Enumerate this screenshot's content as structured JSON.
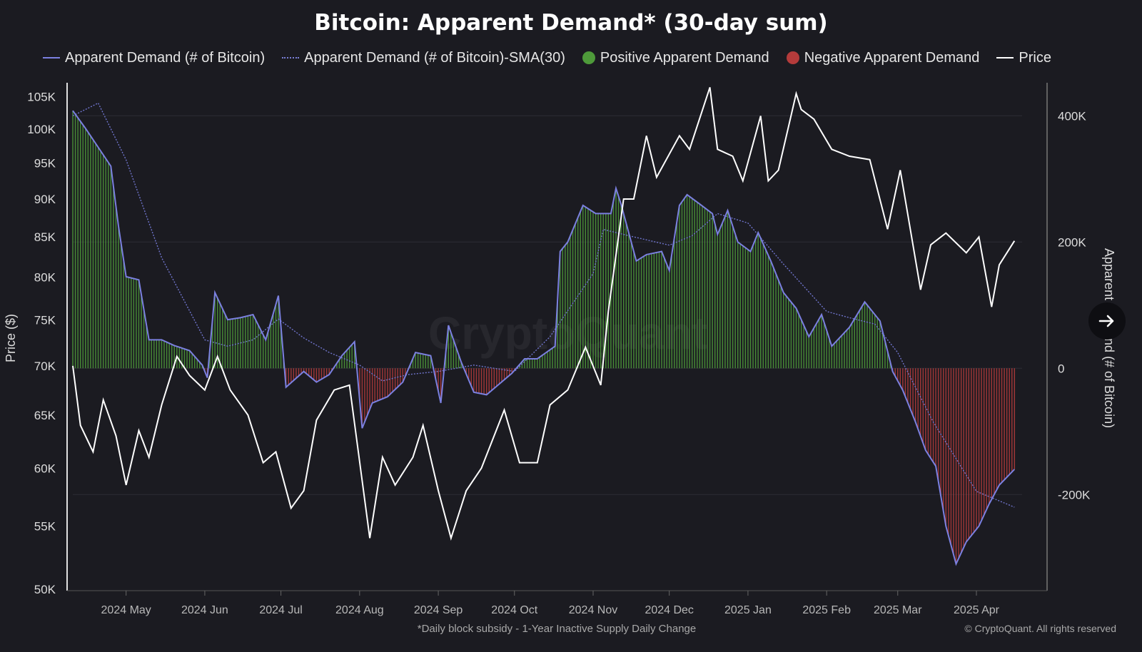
{
  "chart_data": {
    "type": "line",
    "title": "Bitcoin: Apparent Demand* (30-day sum)",
    "footnote": "*Daily block subsidy - 1-Year Inactive Supply Daily Change",
    "copyright": "© CryptoQuant. All rights reserved",
    "watermark": "CryptoQuant",
    "left_axis": {
      "label": "Price ($)",
      "scale": "log",
      "ticks": [
        "105K",
        "100K",
        "95K",
        "90K",
        "85K",
        "80K",
        "75K",
        "70K",
        "65K",
        "60K",
        "55K",
        "50K"
      ],
      "tick_values": [
        105000,
        100000,
        95000,
        90000,
        85000,
        80000,
        75000,
        70000,
        65000,
        60000,
        55000,
        50000
      ],
      "range": [
        50000,
        107000
      ]
    },
    "right_axis": {
      "label": "Apparent Demand (# of Bitcoin)",
      "ticks": [
        "400K",
        "200K",
        "0",
        "-200K"
      ],
      "tick_values": [
        400000,
        200000,
        0,
        -200000
      ],
      "range": [
        -350000,
        450000
      ]
    },
    "x_axis": {
      "ticks": [
        "2024 May",
        "2024 Jun",
        "2024 Jul",
        "2024 Aug",
        "2024 Sep",
        "2024 Oct",
        "2024 Nov",
        "2024 Dec",
        "2025 Jan",
        "2025 Feb",
        "2025 Mar",
        "2025 Apr"
      ],
      "tick_dates": [
        "2024-05-01",
        "2024-06-01",
        "2024-07-01",
        "2024-08-01",
        "2024-09-01",
        "2024-10-01",
        "2024-11-01",
        "2024-12-01",
        "2025-01-01",
        "2025-02-01",
        "2025-03-01",
        "2025-04-01"
      ],
      "start": "2024-04-10",
      "end": "2025-04-19"
    },
    "legend": [
      {
        "label": "Apparent Demand (# of Bitcoin)",
        "kind": "line",
        "color": "#7b80e0"
      },
      {
        "label": "Apparent Demand (# of Bitcoin)-SMA(30)",
        "kind": "dashed",
        "color": "#7a7fd6"
      },
      {
        "label": "Positive Apparent Demand",
        "kind": "dot",
        "color": "#4e9a3a"
      },
      {
        "label": "Negative Apparent Demand",
        "kind": "dot",
        "color": "#b43b3b"
      },
      {
        "label": "Price",
        "kind": "line",
        "color": "#ffffff"
      }
    ],
    "series": [
      {
        "name": "Apparent Demand (# of Bitcoin)",
        "axis": "right",
        "points": [
          [
            "2024-04-10",
            408000
          ],
          [
            "2024-04-15",
            380000
          ],
          [
            "2024-04-20",
            350000
          ],
          [
            "2024-04-25",
            320000
          ],
          [
            "2024-04-28",
            225000
          ],
          [
            "2024-05-01",
            145000
          ],
          [
            "2024-05-06",
            140000
          ],
          [
            "2024-05-10",
            45000
          ],
          [
            "2024-05-15",
            45000
          ],
          [
            "2024-05-20",
            36000
          ],
          [
            "2024-05-26",
            28000
          ],
          [
            "2024-05-31",
            5000
          ],
          [
            "2024-06-02",
            -15000
          ],
          [
            "2024-06-05",
            120000
          ],
          [
            "2024-06-10",
            77000
          ],
          [
            "2024-06-15",
            80000
          ],
          [
            "2024-06-20",
            85000
          ],
          [
            "2024-06-25",
            45000
          ],
          [
            "2024-06-30",
            115000
          ],
          [
            "2024-07-03",
            -30000
          ],
          [
            "2024-07-10",
            -5000
          ],
          [
            "2024-07-15",
            -22000
          ],
          [
            "2024-07-20",
            -10000
          ],
          [
            "2024-07-25",
            20000
          ],
          [
            "2024-07-30",
            42000
          ],
          [
            "2024-08-02",
            -95000
          ],
          [
            "2024-08-06",
            -55000
          ],
          [
            "2024-08-12",
            -45000
          ],
          [
            "2024-08-18",
            -22000
          ],
          [
            "2024-08-23",
            25000
          ],
          [
            "2024-08-29",
            20000
          ],
          [
            "2024-09-02",
            -55000
          ],
          [
            "2024-09-05",
            68000
          ],
          [
            "2024-09-10",
            10000
          ],
          [
            "2024-09-15",
            -38000
          ],
          [
            "2024-09-20",
            -42000
          ],
          [
            "2024-09-25",
            -25000
          ],
          [
            "2024-09-30",
            -8000
          ],
          [
            "2024-10-05",
            15000
          ],
          [
            "2024-10-10",
            15000
          ],
          [
            "2024-10-17",
            35000
          ],
          [
            "2024-10-19",
            185000
          ],
          [
            "2024-10-22",
            200000
          ],
          [
            "2024-10-28",
            258000
          ],
          [
            "2024-11-02",
            245000
          ],
          [
            "2024-11-08",
            245000
          ],
          [
            "2024-11-10",
            285000
          ],
          [
            "2024-11-12",
            260000
          ],
          [
            "2024-11-18",
            170000
          ],
          [
            "2024-11-22",
            180000
          ],
          [
            "2024-11-28",
            185000
          ],
          [
            "2024-12-01",
            155000
          ],
          [
            "2024-12-05",
            258000
          ],
          [
            "2024-12-08",
            275000
          ],
          [
            "2024-12-13",
            260000
          ],
          [
            "2024-12-18",
            245000
          ],
          [
            "2024-12-20",
            212000
          ],
          [
            "2024-12-24",
            250000
          ],
          [
            "2024-12-28",
            200000
          ],
          [
            "2025-01-02",
            185000
          ],
          [
            "2025-01-05",
            215000
          ],
          [
            "2025-01-10",
            170000
          ],
          [
            "2025-01-15",
            120000
          ],
          [
            "2025-01-20",
            95000
          ],
          [
            "2025-01-25",
            50000
          ],
          [
            "2025-01-30",
            85000
          ],
          [
            "2025-02-03",
            35000
          ],
          [
            "2025-02-10",
            65000
          ],
          [
            "2025-02-16",
            105000
          ],
          [
            "2025-02-22",
            75000
          ],
          [
            "2025-02-27",
            -5000
          ],
          [
            "2025-03-03",
            -35000
          ],
          [
            "2025-03-08",
            -85000
          ],
          [
            "2025-03-12",
            -130000
          ],
          [
            "2025-03-16",
            -155000
          ],
          [
            "2025-03-20",
            -250000
          ],
          [
            "2025-03-24",
            -310000
          ],
          [
            "2025-03-28",
            -275000
          ],
          [
            "2025-04-02",
            -250000
          ],
          [
            "2025-04-06",
            -215000
          ],
          [
            "2025-04-10",
            -185000
          ],
          [
            "2025-04-16",
            -160000
          ]
        ]
      },
      {
        "name": "Apparent Demand (# of Bitcoin)-SMA(30)",
        "axis": "right",
        "points": [
          [
            "2024-04-10",
            400000
          ],
          [
            "2024-04-20",
            420000
          ],
          [
            "2024-05-01",
            330000
          ],
          [
            "2024-05-15",
            175000
          ],
          [
            "2024-06-01",
            45000
          ],
          [
            "2024-06-10",
            35000
          ],
          [
            "2024-06-20",
            45000
          ],
          [
            "2024-06-30",
            78000
          ],
          [
            "2024-07-10",
            48000
          ],
          [
            "2024-07-20",
            25000
          ],
          [
            "2024-08-01",
            5000
          ],
          [
            "2024-08-10",
            -20000
          ],
          [
            "2024-08-20",
            -10000
          ],
          [
            "2024-09-01",
            -5000
          ],
          [
            "2024-09-15",
            5000
          ],
          [
            "2024-10-01",
            -5000
          ],
          [
            "2024-10-15",
            50000
          ],
          [
            "2024-11-01",
            150000
          ],
          [
            "2024-11-05",
            220000
          ],
          [
            "2024-11-15",
            210000
          ],
          [
            "2024-12-01",
            195000
          ],
          [
            "2024-12-10",
            210000
          ],
          [
            "2024-12-20",
            245000
          ],
          [
            "2025-01-01",
            230000
          ],
          [
            "2025-01-15",
            165000
          ],
          [
            "2025-02-01",
            90000
          ],
          [
            "2025-02-10",
            80000
          ],
          [
            "2025-02-20",
            70000
          ],
          [
            "2025-03-01",
            25000
          ],
          [
            "2025-03-15",
            -85000
          ],
          [
            "2025-04-01",
            -195000
          ],
          [
            "2025-04-16",
            -220000
          ]
        ]
      },
      {
        "name": "Price",
        "axis": "left",
        "points": [
          [
            "2024-04-10",
            70000
          ],
          [
            "2024-04-13",
            64000
          ],
          [
            "2024-04-18",
            61500
          ],
          [
            "2024-04-22",
            66500
          ],
          [
            "2024-04-27",
            63000
          ],
          [
            "2024-05-01",
            58500
          ],
          [
            "2024-05-06",
            63500
          ],
          [
            "2024-05-10",
            61000
          ],
          [
            "2024-05-15",
            66000
          ],
          [
            "2024-05-21",
            71000
          ],
          [
            "2024-05-26",
            69000
          ],
          [
            "2024-06-01",
            67500
          ],
          [
            "2024-06-06",
            71000
          ],
          [
            "2024-06-11",
            67500
          ],
          [
            "2024-06-18",
            65000
          ],
          [
            "2024-06-24",
            60500
          ],
          [
            "2024-06-29",
            61500
          ],
          [
            "2024-07-05",
            56500
          ],
          [
            "2024-07-10",
            58000
          ],
          [
            "2024-07-15",
            64500
          ],
          [
            "2024-07-22",
            67500
          ],
          [
            "2024-07-28",
            68000
          ],
          [
            "2024-08-05",
            54000
          ],
          [
            "2024-08-10",
            61000
          ],
          [
            "2024-08-15",
            58500
          ],
          [
            "2024-08-22",
            61000
          ],
          [
            "2024-08-26",
            64000
          ],
          [
            "2024-09-01",
            58000
          ],
          [
            "2024-09-06",
            54000
          ],
          [
            "2024-09-12",
            58000
          ],
          [
            "2024-09-18",
            60000
          ],
          [
            "2024-09-27",
            65500
          ],
          [
            "2024-10-03",
            60500
          ],
          [
            "2024-10-10",
            60500
          ],
          [
            "2024-10-15",
            66000
          ],
          [
            "2024-10-22",
            67500
          ],
          [
            "2024-10-29",
            72000
          ],
          [
            "2024-11-04",
            68000
          ],
          [
            "2024-11-07",
            76000
          ],
          [
            "2024-11-13",
            90000
          ],
          [
            "2024-11-17",
            90000
          ],
          [
            "2024-11-22",
            99000
          ],
          [
            "2024-11-26",
            93000
          ],
          [
            "2024-12-05",
            99000
          ],
          [
            "2024-12-09",
            97000
          ],
          [
            "2024-12-17",
            106500
          ],
          [
            "2024-12-20",
            97000
          ],
          [
            "2024-12-26",
            96000
          ],
          [
            "2024-12-30",
            92500
          ],
          [
            "2025-01-06",
            102000
          ],
          [
            "2025-01-09",
            92500
          ],
          [
            "2025-01-13",
            94000
          ],
          [
            "2025-01-20",
            105500
          ],
          [
            "2025-01-22",
            103000
          ],
          [
            "2025-01-27",
            101500
          ],
          [
            "2025-02-03",
            97000
          ],
          [
            "2025-02-10",
            96000
          ],
          [
            "2025-02-18",
            95500
          ],
          [
            "2025-02-25",
            86000
          ],
          [
            "2025-03-02",
            94000
          ],
          [
            "2025-03-10",
            78500
          ],
          [
            "2025-03-14",
            84000
          ],
          [
            "2025-03-20",
            85500
          ],
          [
            "2025-03-28",
            83000
          ],
          [
            "2025-04-02",
            85000
          ],
          [
            "2025-04-07",
            76500
          ],
          [
            "2025-04-10",
            81500
          ],
          [
            "2025-04-16",
            84500
          ]
        ]
      }
    ],
    "grid": true
  }
}
